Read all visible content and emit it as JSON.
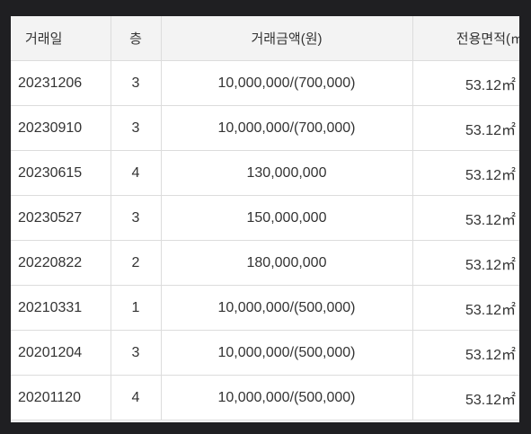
{
  "table": {
    "headers": {
      "date": "거래일",
      "floor": "층",
      "price": "거래금액(원)",
      "area": "전용면적(㎡)"
    },
    "rows": [
      {
        "date": "20231206",
        "floor": "3",
        "price": "10,000,000/(700,000)",
        "area": "53.12㎡"
      },
      {
        "date": "20230910",
        "floor": "3",
        "price": "10,000,000/(700,000)",
        "area": "53.12㎡"
      },
      {
        "date": "20230615",
        "floor": "4",
        "price": "130,000,000",
        "area": "53.12㎡"
      },
      {
        "date": "20230527",
        "floor": "3",
        "price": "150,000,000",
        "area": "53.12㎡"
      },
      {
        "date": "20220822",
        "floor": "2",
        "price": "180,000,000",
        "area": "53.12㎡"
      },
      {
        "date": "20210331",
        "floor": "1",
        "price": "10,000,000/(500,000)",
        "area": "53.12㎡"
      },
      {
        "date": "20201204",
        "floor": "3",
        "price": "10,000,000/(500,000)",
        "area": "53.12㎡"
      },
      {
        "date": "20201120",
        "floor": "4",
        "price": "10,000,000/(500,000)",
        "area": "53.12㎡"
      }
    ]
  }
}
